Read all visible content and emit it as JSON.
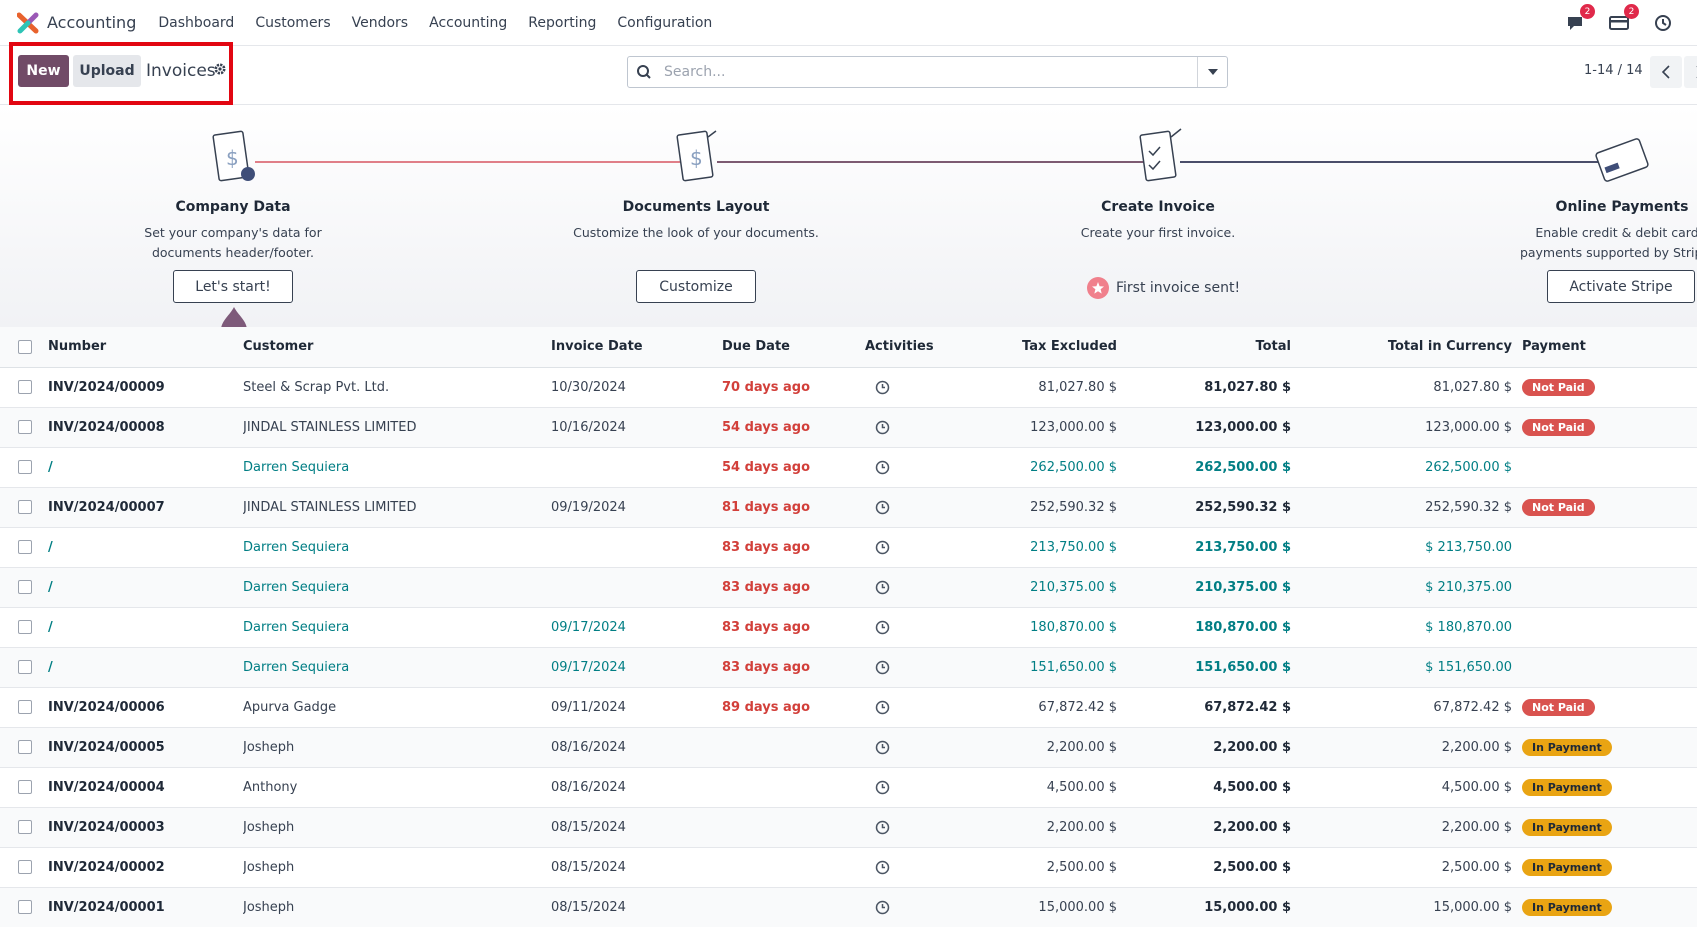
{
  "navbar": {
    "app_name": "Accounting",
    "menu": [
      "Dashboard",
      "Customers",
      "Vendors",
      "Accounting",
      "Reporting",
      "Configuration"
    ],
    "messages_count": "2",
    "activities_count": "2"
  },
  "control_panel": {
    "new_label": "New",
    "upload_label": "Upload",
    "title": "Invoices",
    "search_placeholder": "Search...",
    "pager": "1-14 / 14"
  },
  "onboarding": {
    "steps": [
      {
        "title": "Company Data",
        "desc": "Set your company's data for documents header/footer.",
        "button": "Let's start!"
      },
      {
        "title": "Documents Layout",
        "desc": "Customize the look of your documents.",
        "button": "Customize"
      },
      {
        "title": "Create Invoice",
        "desc": "Create your first invoice.",
        "done_text": "First invoice sent!"
      },
      {
        "title": "Online Payments",
        "desc": "Enable credit & debit card payments supported by Stripe.",
        "button": "Activate Stripe"
      }
    ]
  },
  "table": {
    "headers": {
      "number": "Number",
      "customer": "Customer",
      "invoice_date": "Invoice Date",
      "due_date": "Due Date",
      "activities": "Activities",
      "tax_excluded": "Tax Excluded",
      "total": "Total",
      "total_currency": "Total in Currency",
      "payment": "Payment"
    },
    "rows": [
      {
        "number": "INV/2024/00009",
        "customer": "Steel & Scrap Pvt. Ltd.",
        "invoice_date": "10/30/2024",
        "due": "70 days ago",
        "tax_excluded": "81,027.80 $",
        "total": "81,027.80 $",
        "total_currency": "81,027.80 $",
        "payment": "Not Paid",
        "draft": false
      },
      {
        "number": "INV/2024/00008",
        "customer": "JINDAL STAINLESS LIMITED",
        "invoice_date": "10/16/2024",
        "due": "54 days ago",
        "tax_excluded": "123,000.00 $",
        "total": "123,000.00 $",
        "total_currency": "123,000.00 $",
        "payment": "Not Paid",
        "draft": false
      },
      {
        "number": "/",
        "customer": "Darren Sequiera",
        "invoice_date": "",
        "due": "54 days ago",
        "tax_excluded": "262,500.00 $",
        "total": "262,500.00 $",
        "total_currency": "262,500.00 $",
        "payment": "",
        "draft": true
      },
      {
        "number": "INV/2024/00007",
        "customer": "JINDAL STAINLESS LIMITED",
        "invoice_date": "09/19/2024",
        "due": "81 days ago",
        "tax_excluded": "252,590.32 $",
        "total": "252,590.32 $",
        "total_currency": "252,590.32 $",
        "payment": "Not Paid",
        "draft": false
      },
      {
        "number": "/",
        "customer": "Darren Sequiera",
        "invoice_date": "",
        "due": "83 days ago",
        "tax_excluded": "213,750.00 $",
        "total": "213,750.00 $",
        "total_currency": "$ 213,750.00",
        "payment": "",
        "draft": true
      },
      {
        "number": "/",
        "customer": "Darren Sequiera",
        "invoice_date": "",
        "due": "83 days ago",
        "tax_excluded": "210,375.00 $",
        "total": "210,375.00 $",
        "total_currency": "$ 210,375.00",
        "payment": "",
        "draft": true
      },
      {
        "number": "/",
        "customer": "Darren Sequiera",
        "invoice_date": "09/17/2024",
        "due": "83 days ago",
        "tax_excluded": "180,870.00 $",
        "total": "180,870.00 $",
        "total_currency": "$ 180,870.00",
        "payment": "",
        "draft": true
      },
      {
        "number": "/",
        "customer": "Darren Sequiera",
        "invoice_date": "09/17/2024",
        "due": "83 days ago",
        "tax_excluded": "151,650.00 $",
        "total": "151,650.00 $",
        "total_currency": "$ 151,650.00",
        "payment": "",
        "draft": true
      },
      {
        "number": "INV/2024/00006",
        "customer": "Apurva Gadge",
        "invoice_date": "09/11/2024",
        "due": "89 days ago",
        "tax_excluded": "67,872.42 $",
        "total": "67,872.42 $",
        "total_currency": "67,872.42 $",
        "payment": "Not Paid",
        "draft": false
      },
      {
        "number": "INV/2024/00005",
        "customer": "Josheph",
        "invoice_date": "08/16/2024",
        "due": "",
        "tax_excluded": "2,200.00 $",
        "total": "2,200.00 $",
        "total_currency": "2,200.00 $",
        "payment": "In Payment",
        "draft": false
      },
      {
        "number": "INV/2024/00004",
        "customer": "Anthony",
        "invoice_date": "08/16/2024",
        "due": "",
        "tax_excluded": "4,500.00 $",
        "total": "4,500.00 $",
        "total_currency": "4,500.00 $",
        "payment": "In Payment",
        "draft": false
      },
      {
        "number": "INV/2024/00003",
        "customer": "Josheph",
        "invoice_date": "08/15/2024",
        "due": "",
        "tax_excluded": "2,200.00 $",
        "total": "2,200.00 $",
        "total_currency": "2,200.00 $",
        "payment": "In Payment",
        "draft": false
      },
      {
        "number": "INV/2024/00002",
        "customer": "Josheph",
        "invoice_date": "08/15/2024",
        "due": "",
        "tax_excluded": "2,500.00 $",
        "total": "2,500.00 $",
        "total_currency": "2,500.00 $",
        "payment": "In Payment",
        "draft": false
      },
      {
        "number": "INV/2024/00001",
        "customer": "Josheph",
        "invoice_date": "08/15/2024",
        "due": "",
        "tax_excluded": "15,000.00 $",
        "total": "15,000.00 $",
        "total_currency": "15,000.00 $",
        "payment": "In Payment",
        "draft": false
      }
    ]
  },
  "colors": {
    "brand": "#714b67",
    "late": "#d23f3a",
    "draft": "#017e84",
    "not_paid": "#d9534f",
    "in_payment": "#e9a413",
    "highlight": "#e20611"
  }
}
